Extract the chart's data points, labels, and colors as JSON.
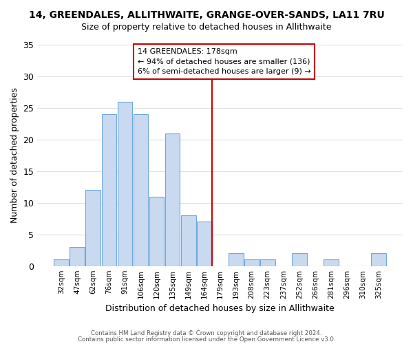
{
  "title_line1": "14, GREENDALES, ALLITHWAITE, GRANGE-OVER-SANDS, LA11 7RU",
  "title_line2": "Size of property relative to detached houses in Allithwaite",
  "xlabel": "Distribution of detached houses by size in Allithwaite",
  "ylabel": "Number of detached properties",
  "bar_labels": [
    "32sqm",
    "47sqm",
    "62sqm",
    "76sqm",
    "91sqm",
    "106sqm",
    "120sqm",
    "135sqm",
    "149sqm",
    "164sqm",
    "179sqm",
    "193sqm",
    "208sqm",
    "223sqm",
    "237sqm",
    "252sqm",
    "266sqm",
    "281sqm",
    "296sqm",
    "310sqm",
    "325sqm"
  ],
  "bar_values": [
    1,
    3,
    12,
    24,
    26,
    24,
    11,
    21,
    8,
    7,
    0,
    2,
    1,
    1,
    0,
    2,
    0,
    1,
    0,
    0,
    2
  ],
  "bar_color": "#c8d9f0",
  "bar_edge_color": "#6fa8dc",
  "grid_color": "#e0e0e0",
  "vline_x": 10,
  "vline_color": "#cc0000",
  "annotation_title": "14 GREENDALES: 178sqm",
  "annotation_line1": "← 94% of detached houses are smaller (136)",
  "annotation_line2": "6% of semi-detached houses are larger (9) →",
  "annotation_box_color": "#ffffff",
  "annotation_box_edge": "#cc0000",
  "ylim": [
    0,
    35
  ],
  "yticks": [
    0,
    5,
    10,
    15,
    20,
    25,
    30,
    35
  ],
  "footer_line1": "Contains HM Land Registry data © Crown copyright and database right 2024.",
  "footer_line2": "Contains public sector information licensed under the Open Government Licence v3.0."
}
